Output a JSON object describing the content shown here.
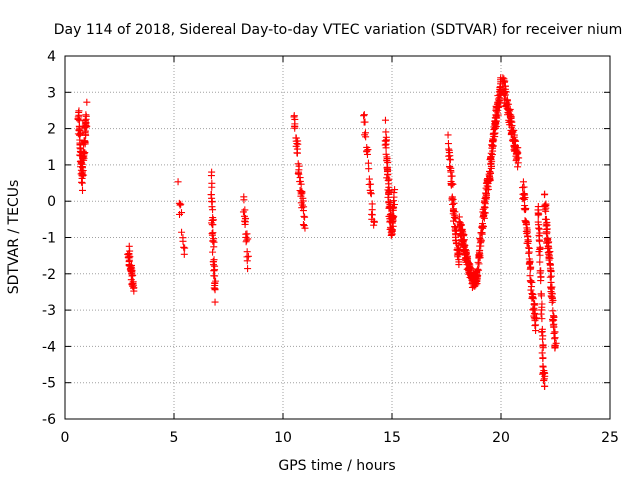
{
  "chart_data": {
    "type": "scatter",
    "title": "Day 114 of 2018, Sidereal Day-to-day VTEC variation (SDTVAR) for receiver nium",
    "xlabel": "GPS time / hours",
    "ylabel": "SDTVAR / TECUs",
    "xlim": [
      0,
      25
    ],
    "ylim": [
      -6,
      4
    ],
    "xticks": [
      0,
      5,
      10,
      15,
      20,
      25
    ],
    "yticks": [
      -6,
      -5,
      -4,
      -3,
      -2,
      -1,
      0,
      1,
      2,
      3,
      4
    ],
    "grid": true,
    "marker": "+",
    "color": "#ff0000",
    "segments": [
      {
        "x0": 0.6,
        "x1": 1.0,
        "n": 90,
        "y": [
          2.6,
          1.5,
          0.5,
          1.8,
          2.4
        ],
        "spread": 0.35
      },
      {
        "x0": 2.9,
        "x1": 3.15,
        "n": 40,
        "y": [
          -1.3,
          -1.9,
          -2.4
        ],
        "spread": 0.2
      },
      {
        "x0": 5.2,
        "x1": 5.5,
        "n": 12,
        "y": [
          0.3,
          -0.6,
          -1.3
        ],
        "spread": 0.3
      },
      {
        "x0": 6.7,
        "x1": 6.9,
        "n": 45,
        "y": [
          0.5,
          -0.6,
          -1.7,
          -2.5
        ],
        "spread": 0.35
      },
      {
        "x0": 8.2,
        "x1": 8.4,
        "n": 22,
        "y": [
          0.0,
          -0.8,
          -1.8
        ],
        "spread": 0.35
      },
      {
        "x0": 10.5,
        "x1": 11.0,
        "n": 45,
        "y": [
          2.2,
          1.3,
          0.2,
          -0.6
        ],
        "spread": 0.3
      },
      {
        "x0": 13.7,
        "x1": 14.2,
        "n": 30,
        "y": [
          2.6,
          1.3,
          0.0,
          -0.8
        ],
        "spread": 0.3
      },
      {
        "x0": 14.7,
        "x1": 15.1,
        "n": 90,
        "y": [
          1.9,
          0.7,
          -0.3,
          -0.8,
          0.0
        ],
        "spread": 0.35
      },
      {
        "x0": 17.6,
        "x1": 18.1,
        "n": 70,
        "y": [
          1.6,
          0.6,
          -0.4,
          -1.2,
          -1.6
        ],
        "spread": 0.25
      },
      {
        "x0": 18.1,
        "x1": 18.9,
        "n": 150,
        "y": [
          -0.6,
          -1.2,
          -1.8,
          -2.2,
          -2.1
        ],
        "spread": 0.2
      },
      {
        "x0": 18.9,
        "x1": 19.5,
        "n": 90,
        "y": [
          -2.1,
          -1.2,
          -0.4,
          0.3,
          0.8
        ],
        "spread": 0.2
      },
      {
        "x0": 19.5,
        "x1": 20.0,
        "n": 100,
        "y": [
          0.9,
          1.9,
          2.5,
          3.2
        ],
        "spread": 0.25
      },
      {
        "x0": 20.1,
        "x1": 20.8,
        "n": 100,
        "y": [
          3.3,
          2.7,
          2.1,
          1.6,
          1.1
        ],
        "spread": 0.25
      },
      {
        "x0": 21.0,
        "x1": 21.6,
        "n": 80,
        "y": [
          0.4,
          -0.5,
          -1.6,
          -2.7,
          -3.4
        ],
        "spread": 0.2
      },
      {
        "x0": 21.7,
        "x1": 22.0,
        "n": 60,
        "y": [
          -0.1,
          -1.0,
          -2.1,
          -3.5,
          -4.7,
          -5.0
        ],
        "spread": 0.2
      },
      {
        "x0": 22.0,
        "x1": 22.5,
        "n": 90,
        "y": [
          0.1,
          -1.0,
          -1.7,
          -3.0,
          -4.0
        ],
        "spread": 0.25
      }
    ]
  }
}
